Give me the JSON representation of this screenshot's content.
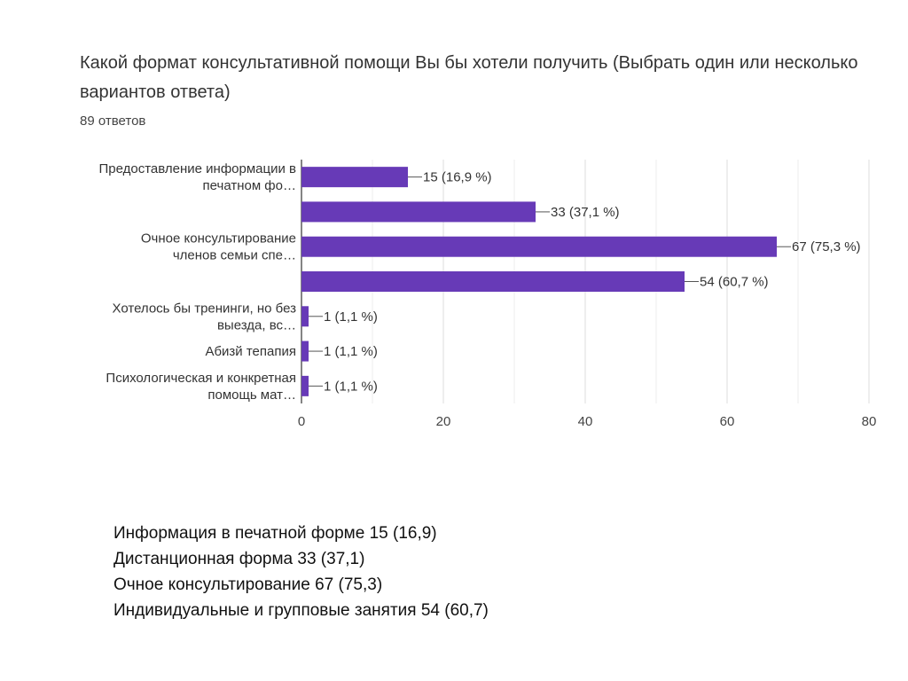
{
  "header": {
    "title": "Какой формат консультативной помощи Вы бы хотели получить (Выбрать один или несколько вариантов ответа)",
    "response_count": "89 ответов"
  },
  "chart_data": {
    "type": "bar",
    "orientation": "horizontal",
    "categories": [
      [
        "Предоставление информации в",
        "печатном фо…"
      ],
      [],
      [
        "Очное консультирование",
        "членов семьи спе…"
      ],
      [],
      [
        "Хотелось бы тренинги, но без",
        "выезда, вс…"
      ],
      [
        "Абизй тепапия"
      ],
      [
        "Психологическая и конкретная",
        "помощь мат…"
      ]
    ],
    "values": [
      15,
      33,
      67,
      54,
      1,
      1,
      1
    ],
    "data_labels": [
      "15 (16,9 %)",
      "33 (37,1 %)",
      "67 (75,3 %)",
      "54 (60,7 %)",
      "1 (1,1 %)",
      "1 (1,1 %)",
      "1 (1,1 %)"
    ],
    "xlim": [
      0,
      80
    ],
    "xticks": [
      0,
      20,
      40,
      60,
      80
    ],
    "bar_color": "#673ab7",
    "grid": true
  },
  "notes": [
    "Информация в печатной форме 15 (16,9)",
    "Дистанционная форма 33 (37,1)",
    "Очное  консультирование 67 (75,3)",
    "Индивидуальные и групповые занятия 54 (60,7)"
  ]
}
